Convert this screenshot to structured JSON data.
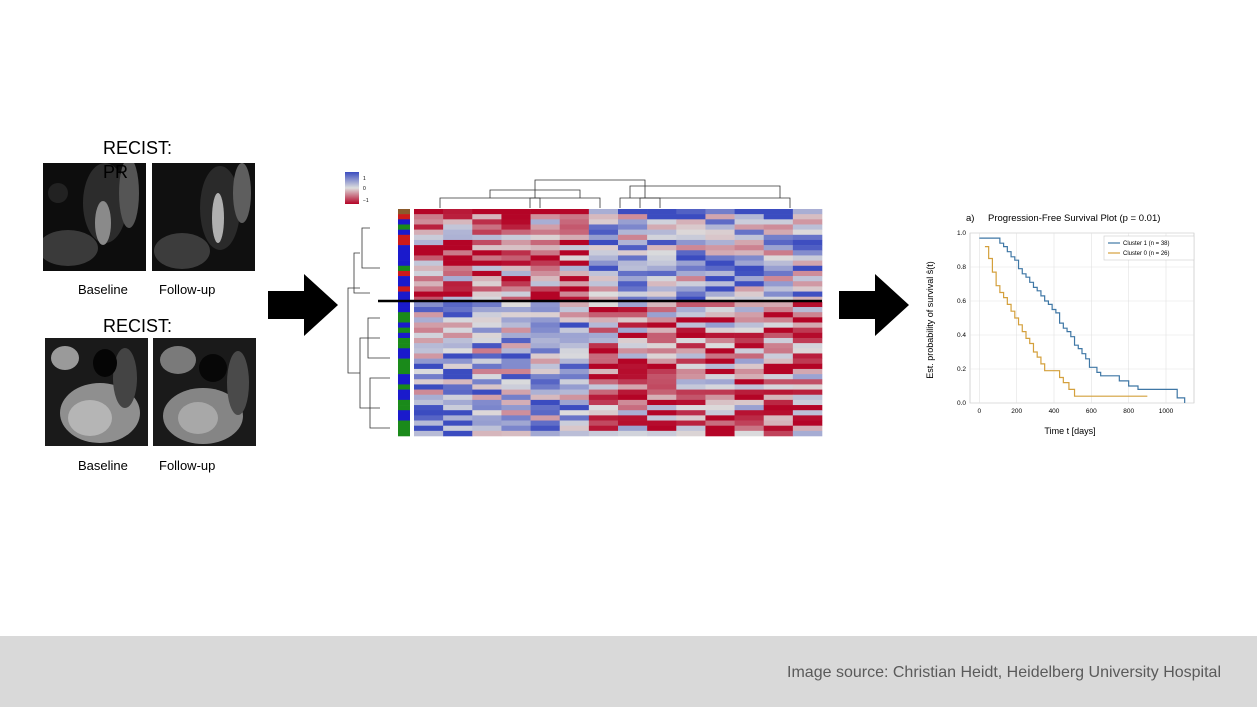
{
  "panel_left": {
    "case1": {
      "title": "RECIST:",
      "title_suffix": "PR",
      "caption_left": "Baseline",
      "caption_right": "Follow-up"
    },
    "case2": {
      "title": "RECIST:",
      "caption_left": "Baseline",
      "caption_right": "Follow-up"
    }
  },
  "heatmap": {
    "scale_labels": [
      "1",
      "0",
      "−1"
    ],
    "colors": {
      "high": "#3b4cc0",
      "mid": "#dddddd",
      "low": "#b40426"
    }
  },
  "km_plot": {
    "panel_label": "a)",
    "title": "Progression-Free Survival Plot (p = 0.01)",
    "xlabel": "Time t [days]",
    "ylabel": "Est. probability of survival ŝ(t)"
  },
  "chart_data": {
    "type": "line",
    "title": "Progression-Free Survival Plot (p = 0.01)",
    "xlabel": "Time t [days]",
    "ylabel": "Est. probability of survival ŝ(t)",
    "xlim": [
      -50,
      1150
    ],
    "ylim": [
      0,
      1.0
    ],
    "xticks": [
      0,
      200,
      400,
      600,
      800,
      1000
    ],
    "yticks": [
      0.0,
      0.2,
      0.4,
      0.6,
      0.8,
      1.0
    ],
    "grid": true,
    "legend": "top-right",
    "series": [
      {
        "name": "Cluster 1 (n = 38)",
        "color": "#3f77a5",
        "x": [
          0,
          90,
          110,
          130,
          150,
          170,
          190,
          210,
          230,
          250,
          270,
          290,
          310,
          330,
          350,
          370,
          390,
          410,
          430,
          450,
          470,
          490,
          510,
          530,
          550,
          570,
          590,
          630,
          650,
          700,
          750,
          800,
          850,
          900,
          1060,
          1100
        ],
        "y": [
          0.97,
          0.97,
          0.94,
          0.92,
          0.89,
          0.86,
          0.84,
          0.79,
          0.76,
          0.74,
          0.71,
          0.68,
          0.66,
          0.63,
          0.6,
          0.58,
          0.55,
          0.53,
          0.47,
          0.44,
          0.42,
          0.39,
          0.34,
          0.32,
          0.29,
          0.26,
          0.21,
          0.18,
          0.16,
          0.16,
          0.13,
          0.1,
          0.08,
          0.08,
          0.03,
          0.0
        ]
      },
      {
        "name": "Cluster 0 (n = 26)",
        "color": "#d4a03c",
        "x": [
          30,
          50,
          70,
          90,
          110,
          130,
          150,
          170,
          190,
          210,
          230,
          250,
          270,
          290,
          310,
          330,
          350,
          370,
          390,
          410,
          430,
          450,
          480,
          510,
          900
        ],
        "y": [
          0.92,
          0.85,
          0.77,
          0.69,
          0.65,
          0.62,
          0.58,
          0.54,
          0.5,
          0.46,
          0.42,
          0.38,
          0.35,
          0.3,
          0.27,
          0.23,
          0.19,
          0.19,
          0.19,
          0.19,
          0.15,
          0.12,
          0.08,
          0.04,
          0.04
        ]
      }
    ]
  },
  "footer": {
    "source": "Image source: Christian Heidt, Heidelberg University Hospital"
  }
}
